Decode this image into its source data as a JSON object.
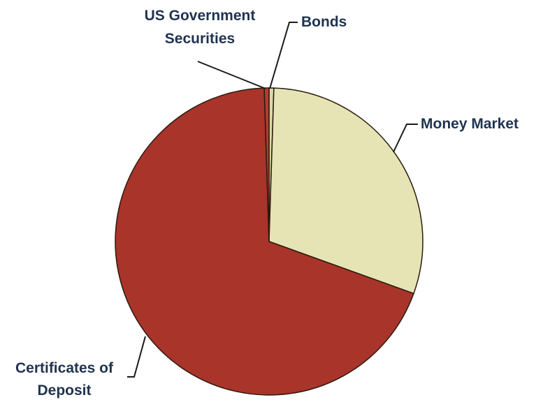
{
  "chart_data": {
    "type": "pie",
    "title": "",
    "slices": [
      {
        "label": "Bonds",
        "value": 0.5,
        "color": "#d9d9a6"
      },
      {
        "label": "Money Market",
        "value": 30,
        "color": "#e6e4b4"
      },
      {
        "label": "Certificates of Deposit",
        "value": 69,
        "color": "#a9342a"
      },
      {
        "label": "US Government Securities",
        "value": 0.5,
        "color": "#b53a2e"
      }
    ],
    "labels": {
      "us_gov_line1": "US Government",
      "us_gov_line2": "Securities",
      "bonds": "Bonds",
      "money_market": "Money Market",
      "cd_line1": "Certificates of",
      "cd_line2": "Deposit"
    }
  }
}
